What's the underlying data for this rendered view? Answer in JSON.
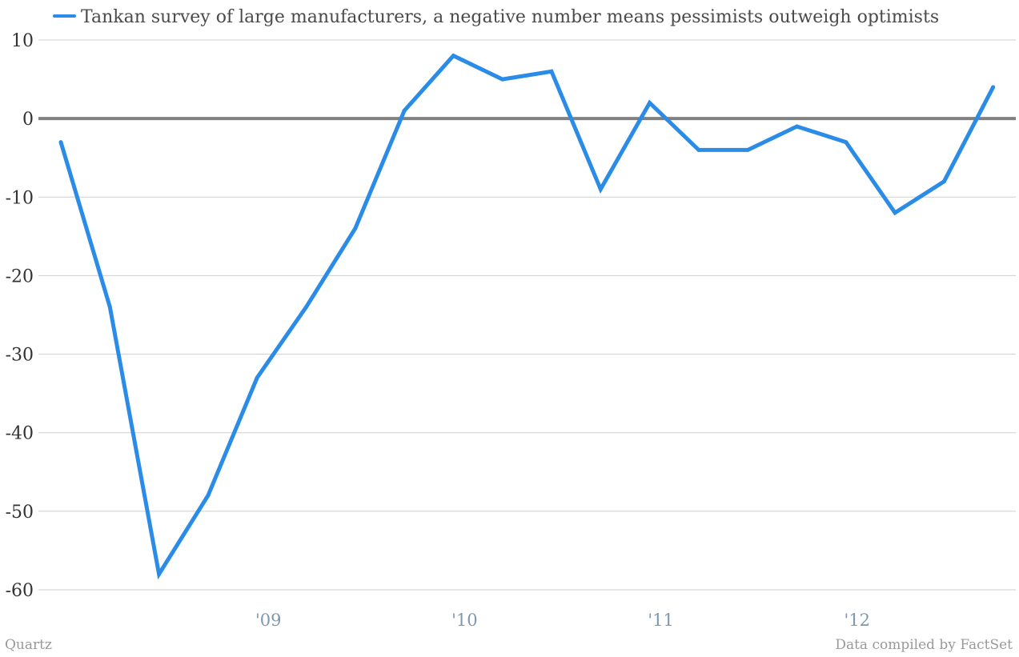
{
  "chart_data": {
    "type": "line",
    "title": "",
    "xlabel": "",
    "ylabel": "",
    "ylim": [
      -60,
      10
    ],
    "yticks": [
      10,
      0,
      -10,
      -20,
      -30,
      -40,
      -50,
      -60
    ],
    "ytick_labels": [
      "10",
      "0",
      "-10",
      "-20",
      "-30",
      "-40",
      "-50",
      "-60"
    ],
    "grid": true,
    "zero_line": true,
    "legend_placement": "top-left",
    "x_ticks": [
      {
        "x": 2009.0,
        "label": "'09"
      },
      {
        "x": 2010.0,
        "label": "'10"
      },
      {
        "x": 2011.0,
        "label": "'11"
      },
      {
        "x": 2012.0,
        "label": "'12"
      }
    ],
    "series": [
      {
        "name": "Tankan survey of large manufacturers, a negative number means pessimists outweigh optimists",
        "color": "#2a8ce6",
        "x": [
          2008.0,
          2008.25,
          2008.5,
          2008.75,
          2009.0,
          2009.25,
          2009.5,
          2009.75,
          2010.0,
          2010.25,
          2010.5,
          2010.75,
          2011.0,
          2011.25,
          2011.5,
          2011.75,
          2012.0,
          2012.25,
          2012.5,
          2012.75
        ],
        "values": [
          -3,
          -24,
          -58,
          -48,
          -33,
          -24,
          -14,
          1,
          8,
          5,
          6,
          -9,
          2,
          -4,
          -4,
          -1,
          -3,
          -12,
          -8,
          4
        ]
      }
    ]
  },
  "footer": {
    "source_left": "Quartz",
    "source_right": "Data compiled by FactSet"
  }
}
